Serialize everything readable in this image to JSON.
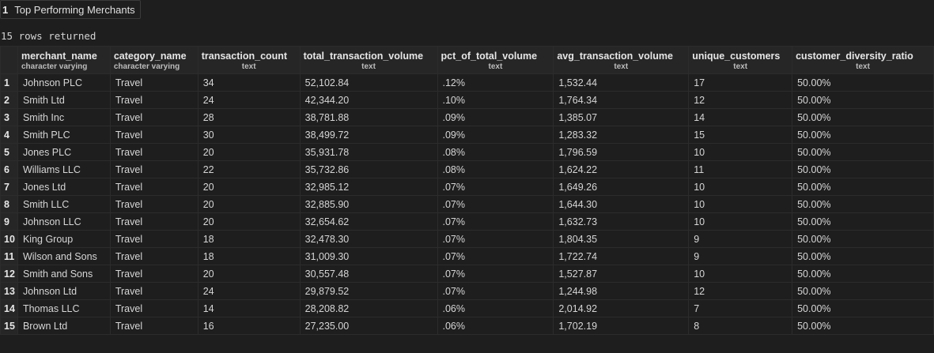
{
  "tab": {
    "number": "1",
    "title": "Top Performing Merchants"
  },
  "status": "15 rows returned",
  "columns": [
    {
      "name": "merchant_name",
      "type": "character varying"
    },
    {
      "name": "category_name",
      "type": "character varying"
    },
    {
      "name": "transaction_count",
      "type": "text"
    },
    {
      "name": "total_transaction_volume",
      "type": "text"
    },
    {
      "name": "pct_of_total_volume",
      "type": "text"
    },
    {
      "name": "avg_transaction_volume",
      "type": "text"
    },
    {
      "name": "unique_customers",
      "type": "text"
    },
    {
      "name": "customer_diversity_ratio",
      "type": "text"
    }
  ],
  "rows": [
    {
      "n": "1",
      "cells": [
        "Johnson PLC",
        "Travel",
        "34",
        "52,102.84",
        ".12%",
        "1,532.44",
        "17",
        "50.00%"
      ]
    },
    {
      "n": "2",
      "cells": [
        "Smith Ltd",
        "Travel",
        "24",
        "42,344.20",
        ".10%",
        "1,764.34",
        "12",
        "50.00%"
      ]
    },
    {
      "n": "3",
      "cells": [
        "Smith Inc",
        "Travel",
        "28",
        "38,781.88",
        ".09%",
        "1,385.07",
        "14",
        "50.00%"
      ]
    },
    {
      "n": "4",
      "cells": [
        "Smith PLC",
        "Travel",
        "30",
        "38,499.72",
        ".09%",
        "1,283.32",
        "15",
        "50.00%"
      ]
    },
    {
      "n": "5",
      "cells": [
        "Jones PLC",
        "Travel",
        "20",
        "35,931.78",
        ".08%",
        "1,796.59",
        "10",
        "50.00%"
      ]
    },
    {
      "n": "6",
      "cells": [
        "Williams LLC",
        "Travel",
        "22",
        "35,732.86",
        ".08%",
        "1,624.22",
        "11",
        "50.00%"
      ]
    },
    {
      "n": "7",
      "cells": [
        "Jones Ltd",
        "Travel",
        "20",
        "32,985.12",
        ".07%",
        "1,649.26",
        "10",
        "50.00%"
      ]
    },
    {
      "n": "8",
      "cells": [
        "Smith LLC",
        "Travel",
        "20",
        "32,885.90",
        ".07%",
        "1,644.30",
        "10",
        "50.00%"
      ]
    },
    {
      "n": "9",
      "cells": [
        "Johnson LLC",
        "Travel",
        "20",
        "32,654.62",
        ".07%",
        "1,632.73",
        "10",
        "50.00%"
      ]
    },
    {
      "n": "10",
      "cells": [
        "King Group",
        "Travel",
        "18",
        "32,478.30",
        ".07%",
        "1,804.35",
        "9",
        "50.00%"
      ]
    },
    {
      "n": "11",
      "cells": [
        "Wilson and Sons",
        "Travel",
        "18",
        "31,009.30",
        ".07%",
        "1,722.74",
        "9",
        "50.00%"
      ]
    },
    {
      "n": "12",
      "cells": [
        "Smith and Sons",
        "Travel",
        "20",
        "30,557.48",
        ".07%",
        "1,527.87",
        "10",
        "50.00%"
      ]
    },
    {
      "n": "13",
      "cells": [
        "Johnson Ltd",
        "Travel",
        "24",
        "29,879.52",
        ".07%",
        "1,244.98",
        "12",
        "50.00%"
      ]
    },
    {
      "n": "14",
      "cells": [
        "Thomas LLC",
        "Travel",
        "14",
        "28,208.82",
        ".06%",
        "2,014.92",
        "7",
        "50.00%"
      ]
    },
    {
      "n": "15",
      "cells": [
        "Brown Ltd",
        "Travel",
        "16",
        "27,235.00",
        ".06%",
        "1,702.19",
        "8",
        "50.00%"
      ]
    }
  ]
}
